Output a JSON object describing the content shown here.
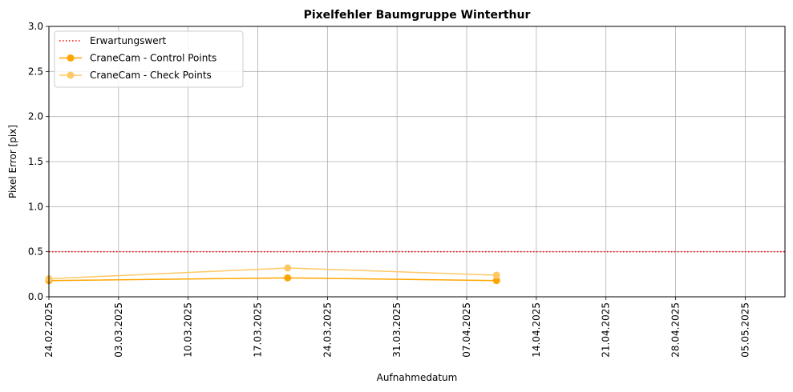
{
  "chart_data": {
    "type": "line",
    "title": "Pixelfehler Baumgruppe Winterthur",
    "xlabel": "Aufnahmedatum",
    "ylabel": "Pixel Error [pix]",
    "ylim": [
      0,
      3.0
    ],
    "xlim": [
      "2025-02-24",
      "2025-05-09"
    ],
    "x_ticks": [
      "24.02.2025",
      "03.03.2025",
      "10.03.2025",
      "17.03.2025",
      "24.03.2025",
      "31.03.2025",
      "07.04.2025",
      "14.04.2025",
      "21.04.2025",
      "28.04.2025",
      "05.05.2025"
    ],
    "x_tick_dates": [
      "2025-02-24",
      "2025-03-03",
      "2025-03-10",
      "2025-03-17",
      "2025-03-24",
      "2025-03-31",
      "2025-04-07",
      "2025-04-14",
      "2025-04-21",
      "2025-04-28",
      "2025-05-05"
    ],
    "y_ticks": [
      "0.0",
      "0.5",
      "1.0",
      "1.5",
      "2.0",
      "2.5",
      "3.0"
    ],
    "y_tick_values": [
      0,
      0.5,
      1.0,
      1.5,
      2.0,
      2.5,
      3.0
    ],
    "grid": true,
    "legend_position": "top-left",
    "reference_line": {
      "name": "Erwartungswert",
      "value": 0.5,
      "color": "#ff0000",
      "style": "dotted"
    },
    "series": [
      {
        "name": "CraneCam - Control Points",
        "color": "#ffa500",
        "x": [
          "2025-02-24",
          "2025-03-20",
          "2025-04-10"
        ],
        "values": [
          0.18,
          0.21,
          0.18
        ]
      },
      {
        "name": "CraneCam - Check Points",
        "color": "#ffc866",
        "x": [
          "2025-02-24",
          "2025-03-20",
          "2025-04-10"
        ],
        "values": [
          0.2,
          0.32,
          0.24
        ]
      }
    ]
  }
}
